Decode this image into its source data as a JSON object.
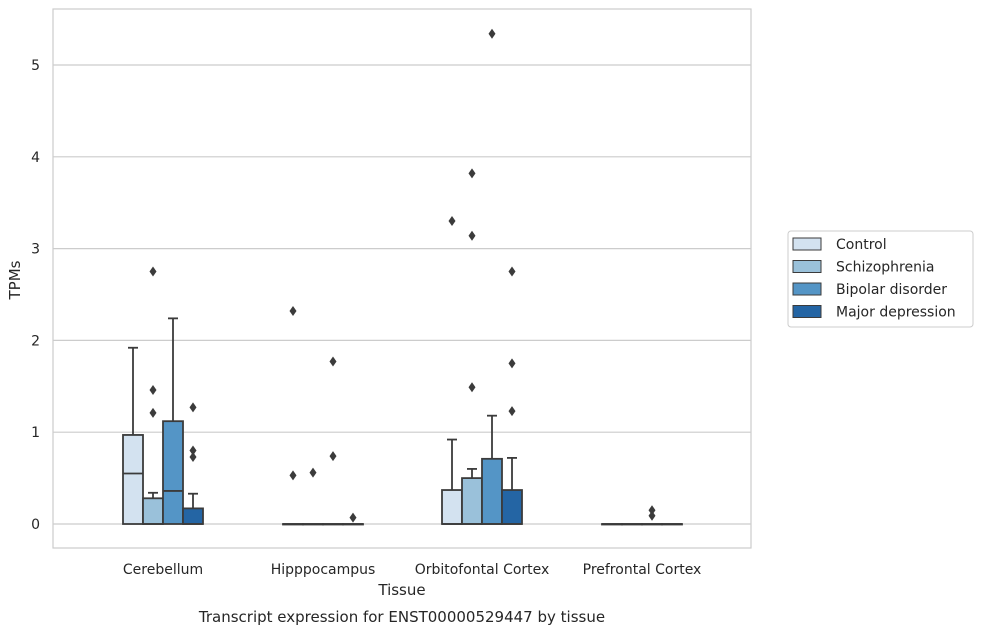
{
  "chart_data": {
    "type": "box",
    "title": "",
    "caption": "Transcript expression for ENST00000529447 by tissue",
    "xlabel": "Tissue",
    "ylabel": "TPMs",
    "ylim": [
      -0.26,
      5.6
    ],
    "yticks": [
      0,
      1,
      2,
      3,
      4,
      5
    ],
    "grid": "horizontal",
    "legend_position": "right",
    "categories": [
      "Cerebellum",
      "Hipppocampus",
      "Orbitofontal Cortex",
      "Prefrontal Cortex"
    ],
    "series": [
      {
        "name": "Control",
        "color": "#d3e2f0",
        "boxes": [
          {
            "q1": 0,
            "median": 0.55,
            "q3": 0.97,
            "whisker_low": 0,
            "whisker_high": 1.92,
            "outliers": []
          },
          {
            "q1": 0,
            "median": 0,
            "q3": 0,
            "whisker_low": 0,
            "whisker_high": 0,
            "outliers": [
              2.32,
              0.53
            ]
          },
          {
            "q1": 0,
            "median": 0,
            "q3": 0.37,
            "whisker_low": 0,
            "whisker_high": 0.92,
            "outliers": [
              3.3
            ]
          },
          {
            "q1": 0,
            "median": 0,
            "q3": 0,
            "whisker_low": 0,
            "whisker_high": 0,
            "outliers": []
          }
        ]
      },
      {
        "name": "Schizophrenia",
        "color": "#9ac1da",
        "boxes": [
          {
            "q1": 0,
            "median": 0,
            "q3": 0.28,
            "whisker_low": 0,
            "whisker_high": 0.34,
            "outliers": [
              2.75,
              1.46,
              1.21
            ]
          },
          {
            "q1": 0,
            "median": 0,
            "q3": 0,
            "whisker_low": 0,
            "whisker_high": 0,
            "outliers": [
              0.56
            ]
          },
          {
            "q1": 0,
            "median": 0,
            "q3": 0.5,
            "whisker_low": 0,
            "whisker_high": 0.6,
            "outliers": [
              3.82,
              3.14,
              1.49
            ]
          },
          {
            "q1": 0,
            "median": 0,
            "q3": 0,
            "whisker_low": 0,
            "whisker_high": 0,
            "outliers": []
          }
        ]
      },
      {
        "name": "Bipolar disorder",
        "color": "#5495c6",
        "boxes": [
          {
            "q1": 0,
            "median": 0.36,
            "q3": 1.12,
            "whisker_low": 0,
            "whisker_high": 2.24,
            "outliers": []
          },
          {
            "q1": 0,
            "median": 0,
            "q3": 0,
            "whisker_low": 0,
            "whisker_high": 0,
            "outliers": [
              1.77,
              0.74
            ]
          },
          {
            "q1": 0,
            "median": 0,
            "q3": 0.71,
            "whisker_low": 0,
            "whisker_high": 1.18,
            "outliers": [
              5.34
            ]
          },
          {
            "q1": 0,
            "median": 0,
            "q3": 0,
            "whisker_low": 0,
            "whisker_high": 0,
            "outliers": [
              0.15,
              0.09
            ]
          }
        ]
      },
      {
        "name": "Major depression",
        "color": "#2465a4",
        "boxes": [
          {
            "q1": 0,
            "median": 0,
            "q3": 0.17,
            "whisker_low": 0,
            "whisker_high": 0.33,
            "outliers": [
              1.27,
              0.8,
              0.73
            ]
          },
          {
            "q1": 0,
            "median": 0,
            "q3": 0,
            "whisker_low": 0,
            "whisker_high": 0,
            "outliers": [
              0.07
            ]
          },
          {
            "q1": 0,
            "median": 0,
            "q3": 0.37,
            "whisker_low": 0,
            "whisker_high": 0.72,
            "outliers": [
              2.75,
              1.75,
              1.23
            ]
          },
          {
            "q1": 0,
            "median": 0,
            "q3": 0,
            "whisker_low": 0,
            "whisker_high": 0,
            "outliers": []
          }
        ]
      }
    ]
  }
}
